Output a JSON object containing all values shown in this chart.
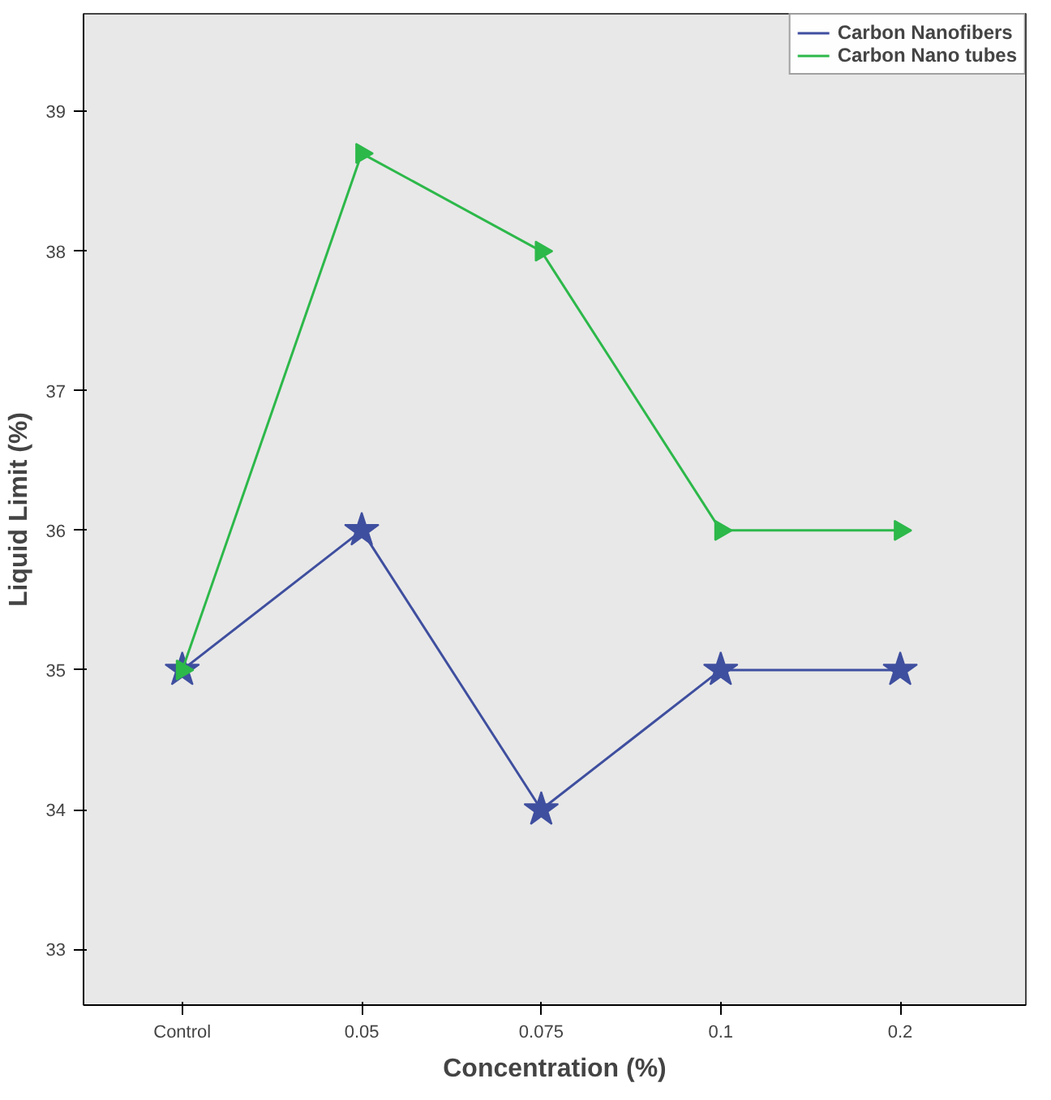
{
  "chart_data": {
    "type": "line",
    "xlabel": "Concentration (%)",
    "ylabel": "Liquid Limit (%)",
    "categories": [
      "Control",
      "0.05",
      "0.075",
      "0.1",
      "0.2"
    ],
    "series": [
      {
        "name": "Carbon Nanofibers",
        "color": "#3f4f9f",
        "marker": "star",
        "values": [
          35,
          36,
          34,
          35,
          35
        ]
      },
      {
        "name": "Carbon Nano tubes",
        "color": "#2db84a",
        "marker": "triangle",
        "values": [
          35,
          38.7,
          38,
          36,
          36
        ]
      }
    ],
    "ylim": [
      32.6,
      39.7
    ],
    "yticks": [
      33,
      34,
      35,
      36,
      37,
      38,
      39
    ],
    "grid": false,
    "legend": "top right"
  }
}
